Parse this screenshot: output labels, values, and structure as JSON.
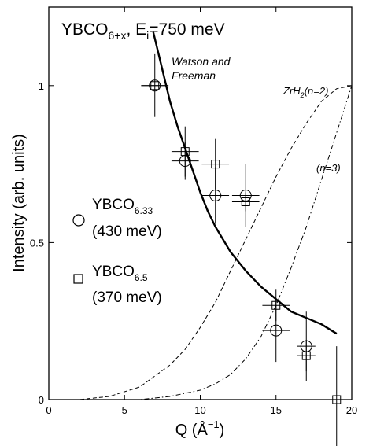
{
  "chart_data": {
    "type": "scatter",
    "title": {
      "main": "YBCO",
      "sub": "6+x",
      "sep": ", E",
      "sub2": "i",
      "tail": "=750 meV"
    },
    "xlabel": {
      "pre": "Q (Å",
      "sup": "−1",
      "post": ")"
    },
    "ylabel": "Intensity (arb. units)",
    "xlim": [
      0,
      20
    ],
    "ylim": [
      0,
      1.25
    ],
    "xticks": [
      "0",
      "5",
      "10",
      "15",
      "20"
    ],
    "yticks": [
      "0",
      "0.5",
      "1"
    ],
    "xtick_values": [
      0,
      5,
      10,
      15,
      20
    ],
    "ytick_values": [
      0,
      0.5,
      1
    ],
    "grid": false,
    "series": [
      {
        "name": "YBCO6.33 (430 meV)",
        "marker": "circle",
        "points": [
          {
            "x": 7.0,
            "y": 1.0,
            "xerr": 0.9,
            "yerr": 0.1
          },
          {
            "x": 9.0,
            "y": 0.76,
            "xerr": 0.9,
            "yerr": 0.06
          },
          {
            "x": 11.0,
            "y": 0.65,
            "xerr": 0.9,
            "yerr": 0.09
          },
          {
            "x": 13.0,
            "y": 0.65,
            "xerr": 0.9,
            "yerr": 0.1
          },
          {
            "x": 15.0,
            "y": 0.22,
            "xerr": 0.9,
            "yerr": 0.1
          },
          {
            "x": 17.0,
            "y": 0.17,
            "xerr": 0.6,
            "yerr": 0.11
          }
        ]
      },
      {
        "name": "YBCO6.5 (370 meV)",
        "marker": "square",
        "points": [
          {
            "x": 7.0,
            "y": 1.0,
            "xerr": 0.9,
            "yerr": 0.0
          },
          {
            "x": 9.0,
            "y": 0.79,
            "xerr": 0.9,
            "yerr": 0.08
          },
          {
            "x": 11.0,
            "y": 0.75,
            "xerr": 0.9,
            "yerr": 0.08
          },
          {
            "x": 13.0,
            "y": 0.63,
            "xerr": 0.9,
            "yerr": 0.03
          },
          {
            "x": 15.0,
            "y": 0.3,
            "xerr": 0.9,
            "yerr": 0.05
          },
          {
            "x": 17.0,
            "y": 0.14,
            "xerr": 0.6,
            "yerr": 0.05
          },
          {
            "x": 19.0,
            "y": 0.0,
            "xerr": 0.0,
            "yerr": 0.17
          }
        ]
      }
    ],
    "curves": [
      {
        "label": "Watson and Freeman",
        "style": "solid",
        "x": [
          6.9,
          7.5,
          8.0,
          8.5,
          9.0,
          9.5,
          10.0,
          10.5,
          11.0,
          11.5,
          12.0,
          13.0,
          14.0,
          15.0,
          16.0,
          17.0,
          18.0,
          19.0
        ],
        "y": [
          1.17,
          1.05,
          0.95,
          0.87,
          0.8,
          0.73,
          0.66,
          0.6,
          0.55,
          0.51,
          0.47,
          0.41,
          0.36,
          0.32,
          0.28,
          0.26,
          0.24,
          0.21
        ]
      },
      {
        "label_main": "ZrH",
        "label_sub": "2",
        "label_tail": "(n=2)",
        "style": "dashed",
        "x": [
          0,
          2,
          4,
          6,
          8,
          9,
          10,
          11,
          12,
          13,
          14,
          15,
          16,
          17,
          18,
          19,
          20
        ],
        "y": [
          0,
          0.0,
          0.01,
          0.04,
          0.11,
          0.16,
          0.23,
          0.31,
          0.41,
          0.51,
          0.61,
          0.71,
          0.8,
          0.88,
          0.95,
          0.99,
          1.0
        ]
      },
      {
        "label": "(n=3)",
        "style": "dashdot",
        "x": [
          0,
          4,
          6,
          8,
          10,
          11,
          12,
          13,
          14,
          15,
          16,
          17,
          18,
          19,
          20
        ],
        "y": [
          0,
          0.0,
          0.0,
          0.01,
          0.03,
          0.05,
          0.08,
          0.13,
          0.2,
          0.3,
          0.42,
          0.55,
          0.7,
          0.85,
          1.0
        ]
      }
    ],
    "legend": [
      {
        "marker": "circle",
        "main": "YBCO",
        "sub": "6.33",
        "energy": "(430 meV)"
      },
      {
        "marker": "square",
        "main": "YBCO",
        "sub": "6.5",
        "energy": "(370 meV)"
      }
    ]
  }
}
